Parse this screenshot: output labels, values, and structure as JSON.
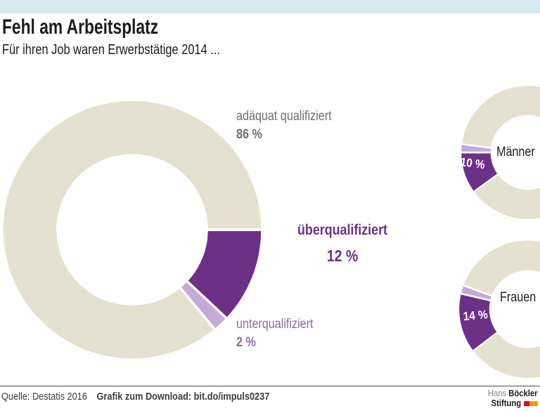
{
  "page": {
    "title": "Fehl am Arbeitsplatz",
    "subtitle": "Für ihren Job waren Erwerbstätige 2014 ..."
  },
  "chart_data": [
    {
      "id": "gesamt",
      "type": "pie",
      "donut": true,
      "start_deg": 90,
      "legend_position": "around",
      "series": [
        {
          "name": "überqualifiziert",
          "value": 12,
          "color": "#6c3187"
        },
        {
          "name": "unterqualifiziert",
          "value": 2,
          "color": "#c4abd7"
        },
        {
          "name": "adäquat qualifiziert",
          "value": 86,
          "color": "#e4e1d0"
        }
      ],
      "annotations": [
        {
          "label": "adäquat qualifiziert",
          "value_label": "86 %"
        },
        {
          "label": "überqualifiziert",
          "value_label": "12 %"
        },
        {
          "label": "unterqualifiziert",
          "value_label": "2 %"
        }
      ]
    },
    {
      "id": "maenner",
      "type": "pie",
      "donut": true,
      "start_deg": 234,
      "center_label": "Männer",
      "value_label": "10 %",
      "series": [
        {
          "name": "überqualifiziert",
          "value": 10,
          "color": "#6c3187"
        },
        {
          "name": "unterqualifiziert",
          "value": 2,
          "color": "#c4abd7"
        },
        {
          "name": "adäquat qualifiziert",
          "value": 88,
          "color": "#e4e1d0"
        }
      ]
    },
    {
      "id": "frauen",
      "type": "pie",
      "donut": true,
      "start_deg": 232.6,
      "center_label": "Frauen",
      "value_label": "14 %",
      "series": [
        {
          "name": "überqualifiziert",
          "value": 14,
          "color": "#6c3187"
        },
        {
          "name": "unterqualifiziert",
          "value": 2,
          "color": "#c4abd7"
        },
        {
          "name": "adäquat qualifiziert",
          "value": 84,
          "color": "#e4e1d0"
        }
      ]
    }
  ],
  "footer": {
    "source": "Quelle: Destatis 2016",
    "download": "Grafik zum Download: bit.do/impuls0237"
  },
  "logo": {
    "name_regular": "Hans",
    "name_bold": "Böckler",
    "line2": "Stiftung"
  },
  "colors": {
    "topbar": "#d8e9f0",
    "beige": "#e4e1d0",
    "purple": "#6c3187",
    "light_purple": "#c4abd7",
    "label_gray": "#706f6f",
    "unter_label_purple": "#8f69ab",
    "text": "#1d1d1b",
    "footer_text": "#3d3d3d",
    "logo_red": "#e2001a",
    "logo_orange": "#f59c00"
  }
}
